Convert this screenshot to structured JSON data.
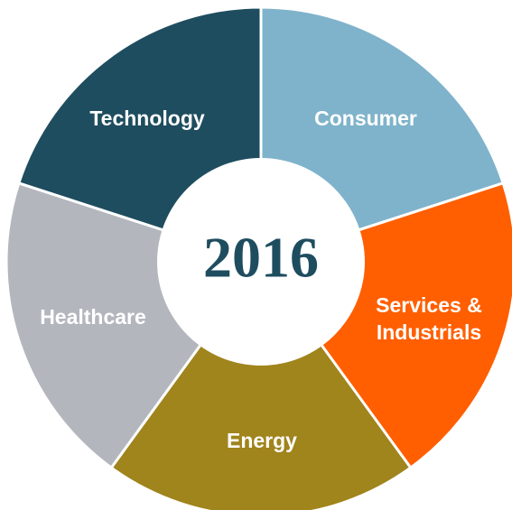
{
  "center": "2016",
  "segments": [
    {
      "label_lines": [
        "Consumer"
      ]
    },
    {
      "label_lines": [
        "Services &",
        "Industrials"
      ]
    },
    {
      "label_lines": [
        "Energy"
      ]
    },
    {
      "label_lines": [
        "Healthcare"
      ]
    },
    {
      "label_lines": [
        "Technology"
      ]
    }
  ]
}
